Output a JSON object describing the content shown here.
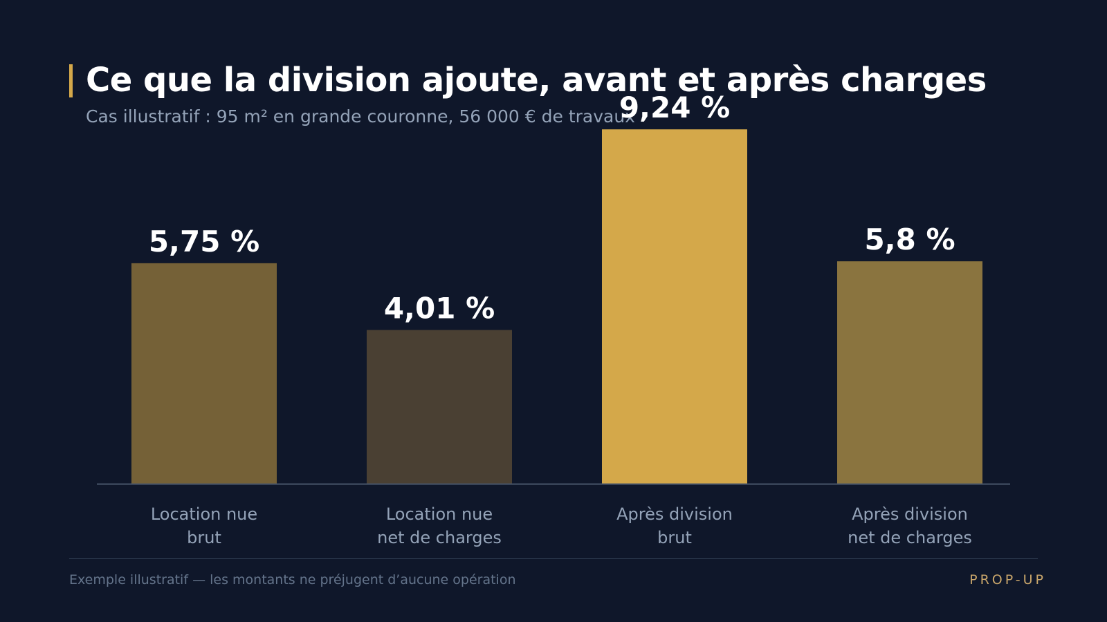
{
  "header": {
    "title": "Ce que la division ajoute, avant et après charges",
    "subtitle": "Cas illustratif : 95 m² en grande couronne, 56 000 € de travaux"
  },
  "footer": {
    "note": "Exemple illustratif — les montants ne préjugent d’aucune opération",
    "brand": "PROP-UP"
  },
  "colors": {
    "background": "#0f172a",
    "accent": "#d4a84a",
    "axis": "#475569"
  },
  "chart_data": {
    "type": "bar",
    "title": "",
    "xlabel": "",
    "ylabel": "",
    "ylim": [
      0,
      10
    ],
    "grid": false,
    "categories": [
      [
        "Location nue",
        "brut"
      ],
      [
        "Location nue",
        "net de charges"
      ],
      [
        "Après division",
        "brut"
      ],
      [
        "Après division",
        "net de charges"
      ]
    ],
    "values": [
      5.75,
      4.01,
      9.24,
      5.8
    ],
    "value_labels": [
      "5,75 %",
      "4,01 %",
      "9,24 %",
      "5,8 %"
    ],
    "bar_colors": [
      "#756137",
      "#4a4033",
      "#d4a84a",
      "#8a743f"
    ]
  }
}
